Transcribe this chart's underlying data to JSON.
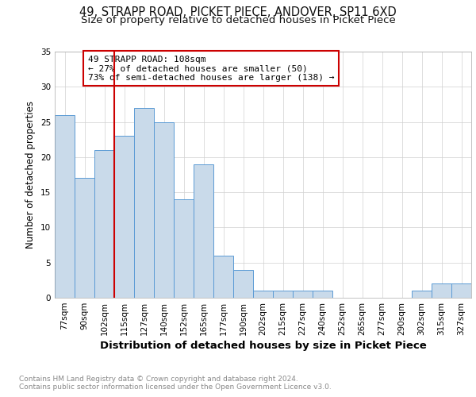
{
  "title": "49, STRAPP ROAD, PICKET PIECE, ANDOVER, SP11 6XD",
  "subtitle": "Size of property relative to detached houses in Picket Piece",
  "xlabel": "Distribution of detached houses by size in Picket Piece",
  "ylabel": "Number of detached properties",
  "categories": [
    "77sqm",
    "90sqm",
    "102sqm",
    "115sqm",
    "127sqm",
    "140sqm",
    "152sqm",
    "165sqm",
    "177sqm",
    "190sqm",
    "202sqm",
    "215sqm",
    "227sqm",
    "240sqm",
    "252sqm",
    "265sqm",
    "277sqm",
    "290sqm",
    "302sqm",
    "315sqm",
    "327sqm"
  ],
  "values": [
    26,
    17,
    21,
    23,
    27,
    25,
    14,
    19,
    6,
    4,
    1,
    1,
    1,
    1,
    0,
    0,
    0,
    0,
    1,
    2,
    2
  ],
  "bar_color": "#c9daea",
  "bar_edge_color": "#5b9bd5",
  "vline_x": 2.5,
  "vline_color": "#cc0000",
  "annotation_text": "49 STRAPP ROAD: 108sqm\n← 27% of detached houses are smaller (50)\n73% of semi-detached houses are larger (138) →",
  "annotation_box_color": "#cc0000",
  "annotation_text_color": "#000000",
  "ylim": [
    0,
    35
  ],
  "yticks": [
    0,
    5,
    10,
    15,
    20,
    25,
    30,
    35
  ],
  "background_color": "#ffffff",
  "grid_color": "#d0d0d0",
  "footer_text": "Contains HM Land Registry data © Crown copyright and database right 2024.\nContains public sector information licensed under the Open Government Licence v3.0.",
  "title_fontsize": 10.5,
  "subtitle_fontsize": 9.5,
  "xlabel_fontsize": 9.5,
  "ylabel_fontsize": 8.5,
  "tick_fontsize": 7.5,
  "footer_fontsize": 6.5,
  "annot_fontsize": 8.0
}
